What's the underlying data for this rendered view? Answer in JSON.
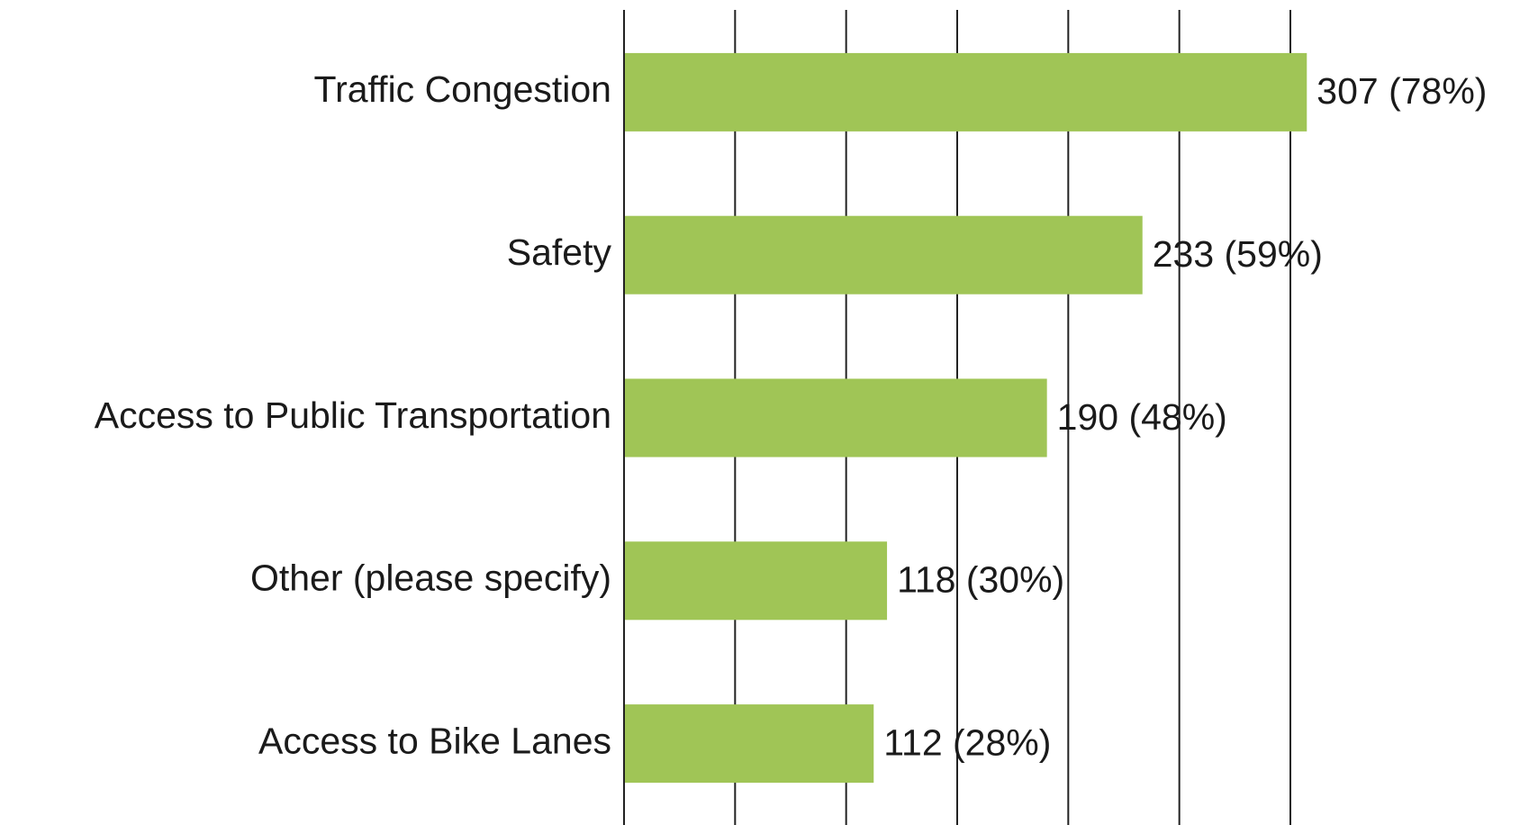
{
  "chart_data": {
    "type": "hbar",
    "categories": [
      "Traffic Congestion",
      "Safety",
      "Access to Public Transportation",
      "Other (please specify)",
      "Access to Bike Lanes"
    ],
    "values": [
      307,
      233,
      190,
      118,
      112
    ],
    "value_labels": [
      "307 (78%)",
      "233 (59%)",
      "190 (48%)",
      "118 (30%)",
      "112 (28%)"
    ],
    "color": "#a0c556",
    "xlim": [
      0,
      300
    ],
    "xticks": [
      0,
      50,
      100,
      150,
      200,
      250,
      300
    ],
    "grid": true
  }
}
